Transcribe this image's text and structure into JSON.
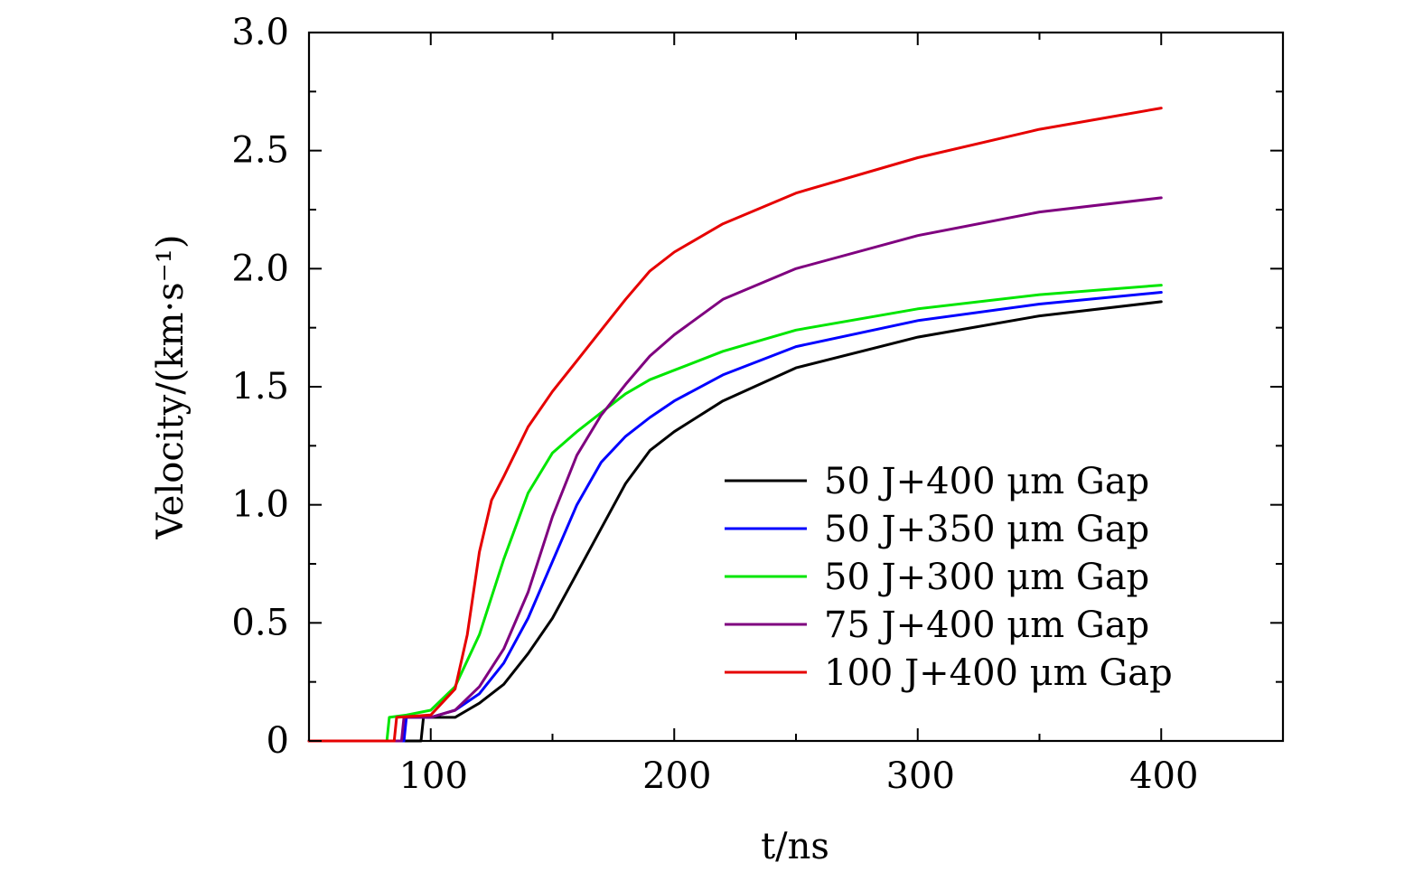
{
  "chart_data": {
    "type": "line",
    "xlabel": "t/ns",
    "ylabel": "Velocity/(km·s⁻¹)",
    "xlim": [
      50,
      450
    ],
    "ylim": [
      0,
      3.0
    ],
    "x_ticks": [
      100,
      200,
      300,
      400
    ],
    "y_ticks": [
      0,
      0.5,
      1.0,
      1.5,
      2.0,
      2.5,
      3.0
    ],
    "x_tick_labels": [
      "100",
      "200",
      "300",
      "400"
    ],
    "y_tick_labels": [
      "0",
      "0.5",
      "1.0",
      "1.5",
      "2.0",
      "2.5",
      "3.0"
    ],
    "grid": false,
    "legend_position": "bottom-right",
    "series": [
      {
        "name": "50 J+400 μm Gap",
        "color": "#000000",
        "x": [
          50,
          96,
          97,
          110,
          115,
          120,
          130,
          140,
          150,
          160,
          170,
          180,
          190,
          200,
          220,
          250,
          300,
          350,
          400
        ],
        "y": [
          0,
          0,
          0.1,
          0.1,
          0.13,
          0.16,
          0.24,
          0.37,
          0.52,
          0.71,
          0.9,
          1.09,
          1.23,
          1.31,
          1.44,
          1.58,
          1.71,
          1.8,
          1.86
        ]
      },
      {
        "name": "50 J+350 μm Gap",
        "color": "#0000ff",
        "x": [
          50,
          89,
          90,
          100,
          110,
          120,
          130,
          140,
          150,
          160,
          170,
          180,
          190,
          200,
          220,
          250,
          300,
          350,
          400
        ],
        "y": [
          0,
          0,
          0.1,
          0.1,
          0.13,
          0.2,
          0.33,
          0.52,
          0.76,
          1.0,
          1.18,
          1.29,
          1.37,
          1.44,
          1.55,
          1.67,
          1.78,
          1.85,
          1.9
        ]
      },
      {
        "name": "50 J+300 μm Gap",
        "color": "#00e600",
        "x": [
          50,
          82,
          83,
          90,
          100,
          110,
          120,
          130,
          140,
          150,
          160,
          170,
          180,
          190,
          200,
          220,
          250,
          300,
          350,
          400
        ],
        "y": [
          0,
          0,
          0.1,
          0.11,
          0.13,
          0.23,
          0.45,
          0.77,
          1.05,
          1.22,
          1.31,
          1.39,
          1.47,
          1.53,
          1.57,
          1.65,
          1.74,
          1.83,
          1.89,
          1.93
        ]
      },
      {
        "name": "75 J+400 μm Gap",
        "color": "#7f007f",
        "x": [
          50,
          88,
          89,
          100,
          110,
          120,
          130,
          140,
          150,
          160,
          170,
          180,
          190,
          200,
          220,
          250,
          300,
          350,
          400
        ],
        "y": [
          0,
          0,
          0.1,
          0.1,
          0.13,
          0.23,
          0.39,
          0.63,
          0.95,
          1.21,
          1.38,
          1.51,
          1.63,
          1.72,
          1.87,
          2.0,
          2.14,
          2.24,
          2.3
        ]
      },
      {
        "name": "100 J+400 μm Gap",
        "color": "#e60000",
        "x": [
          50,
          85,
          86,
          100,
          110,
          115,
          120,
          125,
          130,
          140,
          150,
          160,
          170,
          180,
          190,
          200,
          220,
          250,
          300,
          350,
          400
        ],
        "y": [
          0,
          0,
          0.1,
          0.11,
          0.22,
          0.45,
          0.8,
          1.02,
          1.12,
          1.33,
          1.48,
          1.61,
          1.74,
          1.87,
          1.99,
          2.07,
          2.19,
          2.32,
          2.47,
          2.59,
          2.68
        ]
      }
    ]
  }
}
